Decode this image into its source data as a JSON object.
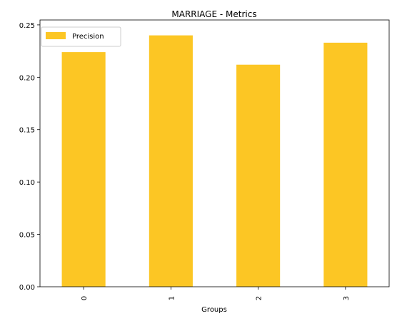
{
  "chart_data": {
    "type": "bar",
    "title": "MARRIAGE - Metrics",
    "xlabel": "Groups",
    "ylabel": "",
    "categories": [
      "0",
      "1",
      "2",
      "3"
    ],
    "series": [
      {
        "name": "Precision",
        "values": [
          0.224,
          0.24,
          0.212,
          0.233
        ],
        "color": "#fcc624"
      }
    ],
    "ylim": [
      0,
      0.25
    ],
    "yticks": [
      0.0,
      0.05,
      0.1,
      0.15,
      0.2,
      0.25
    ],
    "ytick_labels": [
      "0.00",
      "0.05",
      "0.10",
      "0.15",
      "0.20",
      "0.25"
    ],
    "grid": false,
    "legend_position": "top-left"
  }
}
